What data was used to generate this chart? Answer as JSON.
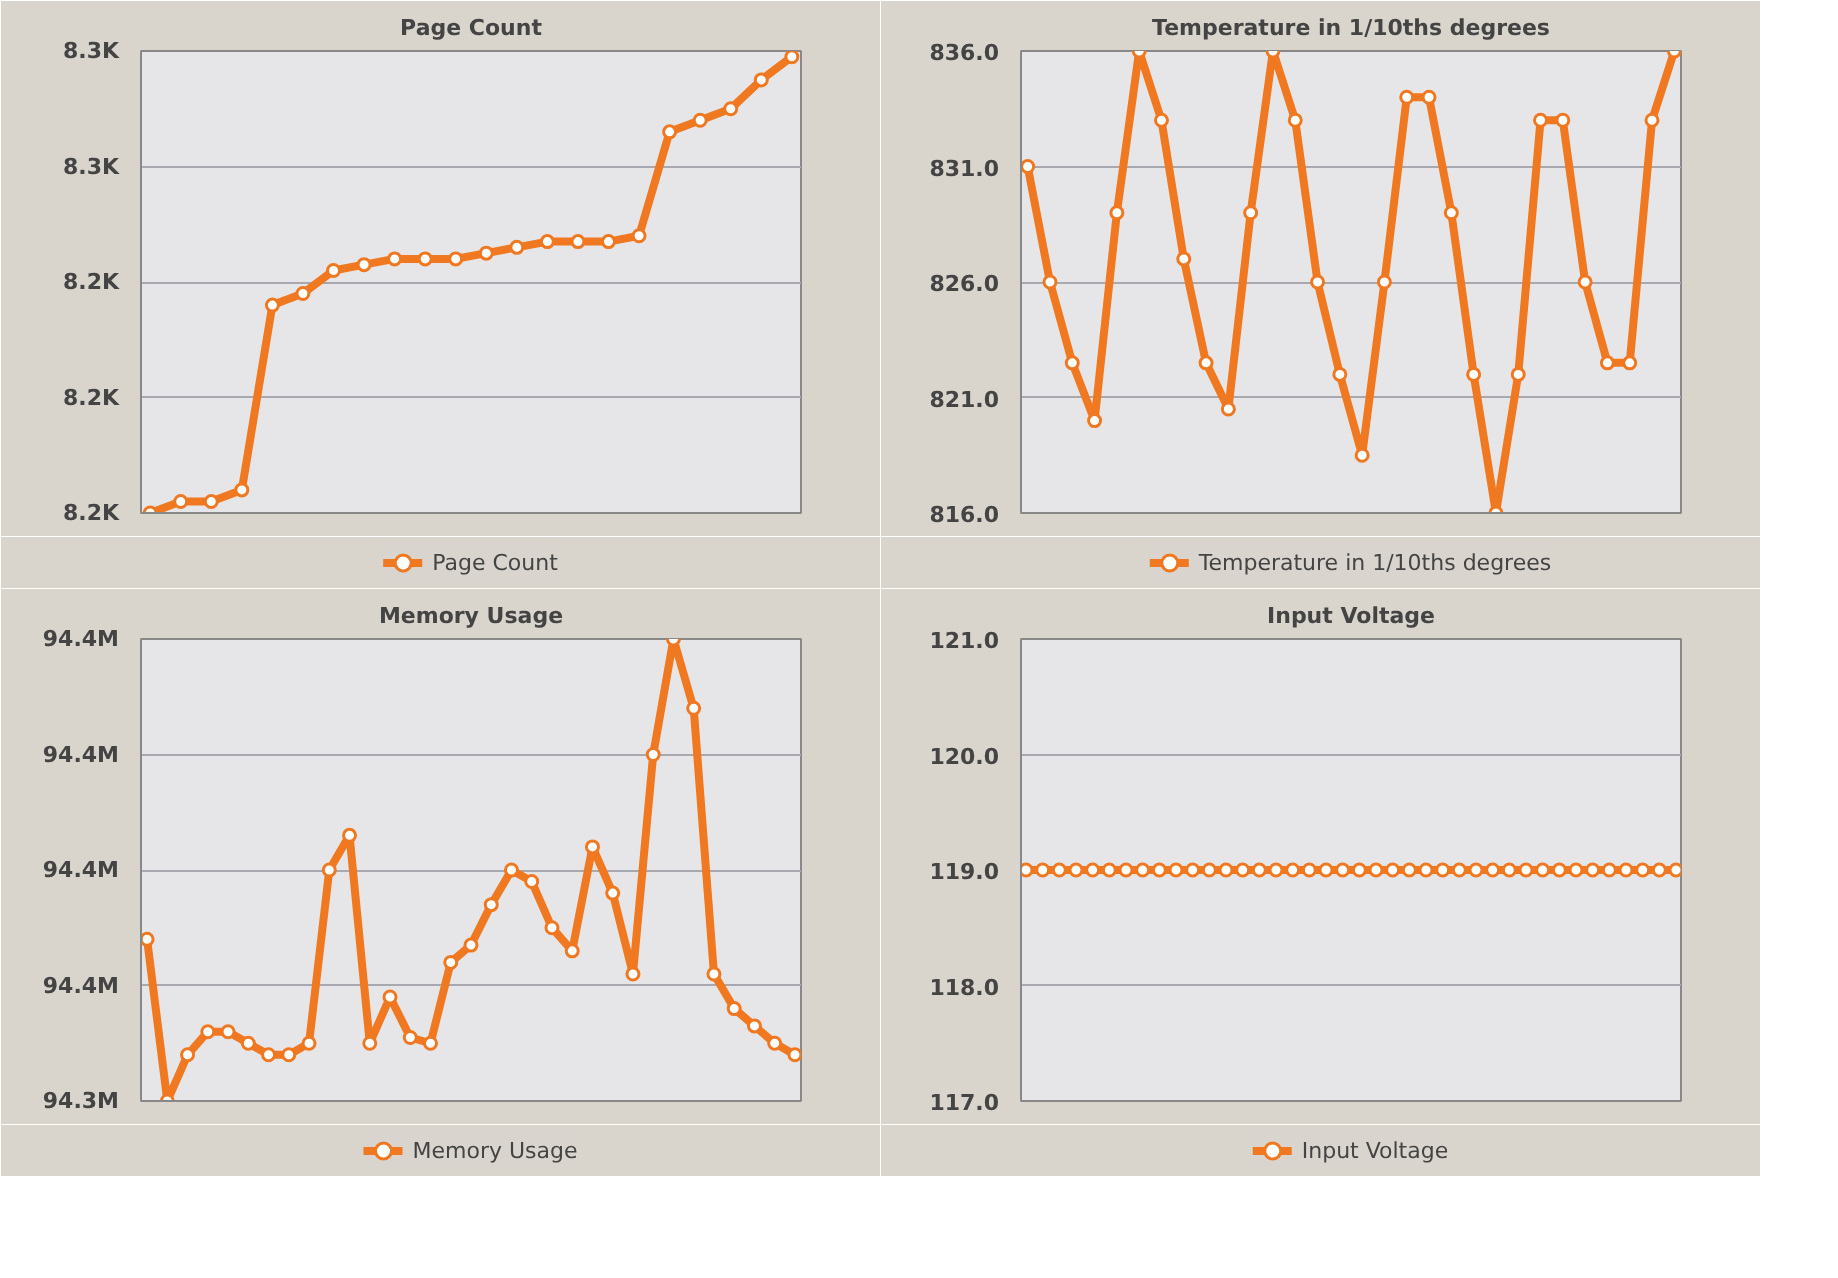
{
  "chart_data": [
    {
      "type": "line",
      "title": "Page Count",
      "categories": [
        null,
        null,
        null,
        null,
        null,
        null,
        null,
        null,
        null,
        null,
        null,
        null,
        null,
        null,
        null,
        null,
        null,
        null,
        null,
        null,
        null,
        null
      ],
      "series": [
        {
          "name": "Page Count",
          "color": "#f07820",
          "values": [
            8200,
            8202,
            8202,
            8204,
            8236,
            8238,
            8242,
            8243,
            8244,
            8244,
            8244,
            8245,
            8246,
            8247,
            8247,
            8247,
            8248,
            8266,
            8268,
            8270,
            8275,
            8279
          ]
        }
      ],
      "ylim": [
        8200,
        8280
      ],
      "yticks": [
        {
          "value": 8200,
          "label": "8.2K"
        },
        {
          "value": 8220,
          "label": "8.2K"
        },
        {
          "value": 8240,
          "label": "8.2K"
        },
        {
          "value": 8260,
          "label": "8.3K"
        },
        {
          "value": 8280,
          "label": "8.3K"
        }
      ],
      "grid": "y",
      "legend": "bottom",
      "marker": "circle",
      "tick_labels": "y"
    },
    {
      "type": "line",
      "title": "Temperature in 1/10ths degrees",
      "categories": [
        null,
        null,
        null,
        null,
        null,
        null,
        null,
        null,
        null,
        null,
        null,
        null,
        null,
        null,
        null,
        null,
        null,
        null,
        null,
        null,
        null,
        null,
        null,
        null,
        null,
        null,
        null,
        null,
        null,
        null
      ],
      "series": [
        {
          "name": "Temperature in 1/10ths degrees",
          "color": "#f07820",
          "values": [
            831,
            826,
            822.5,
            820,
            829,
            836,
            833,
            827,
            822.5,
            820.5,
            829,
            836,
            833,
            826,
            822,
            818.5,
            826,
            834,
            834,
            829,
            822,
            816,
            822,
            833,
            833,
            826,
            822.5,
            822.5,
            833,
            836
          ]
        }
      ],
      "ylim": [
        816,
        836
      ],
      "yticks": [
        {
          "value": 816,
          "label": "816.0"
        },
        {
          "value": 821,
          "label": "821.0"
        },
        {
          "value": 826,
          "label": "826.0"
        },
        {
          "value": 831,
          "label": "831.0"
        },
        {
          "value": 836,
          "label": "836.0"
        }
      ],
      "grid": "y",
      "legend": "bottom",
      "marker": "circle",
      "tick_labels": "y"
    },
    {
      "type": "line",
      "title": "Memory Usage",
      "categories": [
        null,
        null,
        null,
        null,
        null,
        null,
        null,
        null,
        null,
        null,
        null,
        null,
        null,
        null,
        null,
        null,
        null,
        null,
        null,
        null,
        null,
        null,
        null,
        null,
        null,
        null,
        null,
        null,
        null,
        null,
        null,
        null,
        null
      ],
      "series": [
        {
          "name": "Memory Usage",
          "color": "#f07820",
          "values": [
            94.368,
            94.34,
            94.348,
            94.352,
            94.352,
            94.35,
            94.348,
            94.348,
            94.35,
            94.38,
            94.386,
            94.35,
            94.358,
            94.351,
            94.35,
            94.364,
            94.367,
            94.374,
            94.38,
            94.378,
            94.37,
            94.366,
            94.384,
            94.376,
            94.362,
            94.4,
            94.42,
            94.408,
            94.362,
            94.356,
            94.353,
            94.35,
            94.348
          ]
        }
      ],
      "ylim": [
        94.34,
        94.42
      ],
      "yticks": [
        {
          "value": 94.34,
          "label": "94.3M"
        },
        {
          "value": 94.36,
          "label": "94.4M"
        },
        {
          "value": 94.38,
          "label": "94.4M"
        },
        {
          "value": 94.4,
          "label": "94.4M"
        },
        {
          "value": 94.42,
          "label": "94.4M"
        }
      ],
      "grid": "y",
      "legend": "bottom",
      "marker": "circle",
      "tick_labels": "y"
    },
    {
      "type": "line",
      "title": "Input Voltage",
      "categories": [
        null,
        null,
        null,
        null,
        null,
        null,
        null,
        null,
        null,
        null,
        null,
        null,
        null,
        null,
        null,
        null,
        null,
        null,
        null,
        null,
        null,
        null,
        null,
        null,
        null,
        null,
        null,
        null,
        null,
        null,
        null,
        null,
        null,
        null,
        null,
        null,
        null,
        null,
        null,
        null
      ],
      "series": [
        {
          "name": "Input Voltage",
          "color": "#f07820",
          "values": [
            119,
            119,
            119,
            119,
            119,
            119,
            119,
            119,
            119,
            119,
            119,
            119,
            119,
            119,
            119,
            119,
            119,
            119,
            119,
            119,
            119,
            119,
            119,
            119,
            119,
            119,
            119,
            119,
            119,
            119,
            119,
            119,
            119,
            119,
            119,
            119,
            119,
            119,
            119,
            119
          ]
        }
      ],
      "ylim": [
        117,
        121
      ],
      "yticks": [
        {
          "value": 117,
          "label": "117.0"
        },
        {
          "value": 118,
          "label": "118.0"
        },
        {
          "value": 119,
          "label": "119.0"
        },
        {
          "value": 120,
          "label": "120.0"
        },
        {
          "value": 121,
          "label": "121.0"
        }
      ],
      "grid": "y",
      "legend": "bottom",
      "marker": "circle",
      "tick_labels": "y"
    }
  ]
}
